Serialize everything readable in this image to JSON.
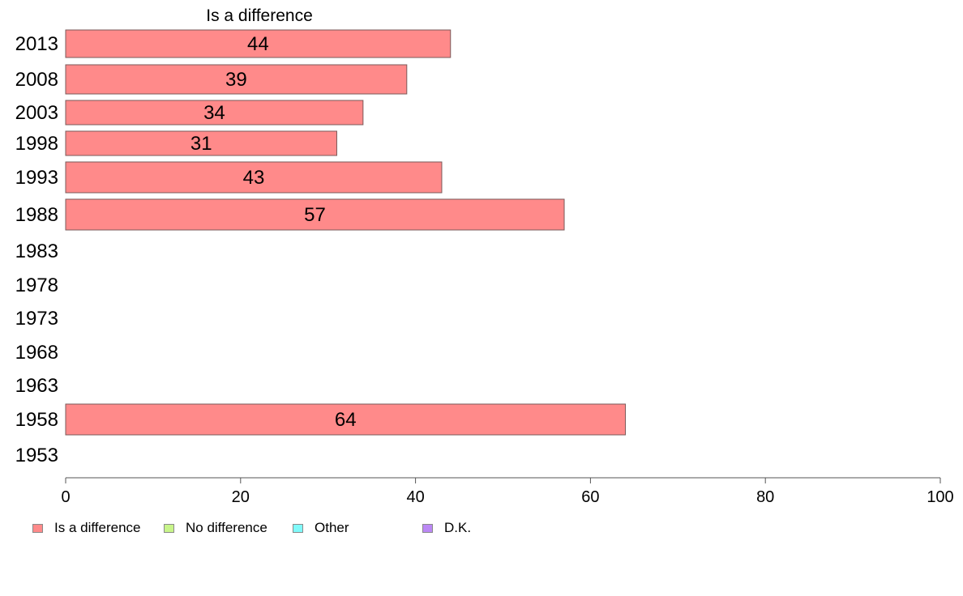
{
  "chart_data": {
    "type": "bar",
    "orientation": "horizontal",
    "title": "Is a difference",
    "categories": [
      "2013",
      "2008",
      "2003",
      "1998",
      "1993",
      "1988",
      "1983",
      "1978",
      "1973",
      "1968",
      "1963",
      "1958",
      "1953"
    ],
    "series": [
      {
        "name": "Is a difference",
        "color": "#ff8a8a",
        "values": [
          44,
          39,
          34,
          31,
          43,
          57,
          null,
          null,
          null,
          null,
          null,
          64,
          null
        ],
        "labels": [
          "44",
          "39",
          "34",
          "31",
          "43",
          "57",
          "",
          "",
          "",
          "",
          "",
          "64",
          ""
        ]
      }
    ],
    "xlim": [
      0,
      100
    ],
    "xticks": [
      0,
      20,
      40,
      60,
      80,
      100
    ],
    "xtick_labels": [
      "0",
      "20",
      "40",
      "60",
      "80",
      "100"
    ],
    "grid": false,
    "legend_position": "bottom-left",
    "legend": [
      {
        "label": "Is a difference",
        "color": "#ff8a8a"
      },
      {
        "label": "No difference",
        "color": "#c8f58a"
      },
      {
        "label": "Other",
        "color": "#80fafa"
      },
      {
        "label": "D.K.",
        "color": "#bb88f5"
      }
    ]
  }
}
